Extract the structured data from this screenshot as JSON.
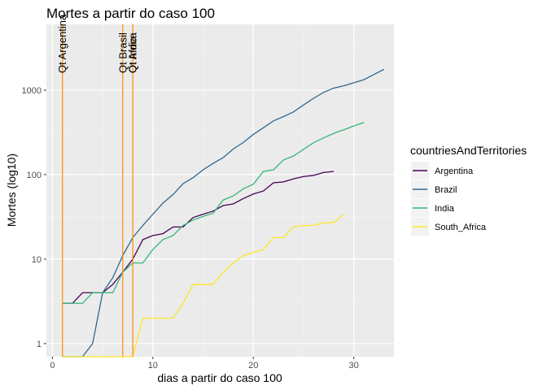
{
  "chart_data": {
    "type": "line",
    "title": "Mortes a partir do caso 100",
    "xlabel": "dias a partir do caso 100",
    "ylabel": "Mortes (log10)",
    "xlim": [
      -0.6,
      34.0
    ],
    "ylim": [
      0.7,
      6000
    ],
    "yscale": "log10",
    "x_ticks": [
      0,
      10,
      20,
      30
    ],
    "x_minor_ticks": [
      5,
      15,
      25
    ],
    "y_ticks": [
      1,
      10,
      100,
      1000
    ],
    "y_tick_labels": [
      "1",
      "10",
      "100",
      "1000"
    ],
    "grid": true,
    "legend": {
      "title": "countriesAndTerritories",
      "placement": "right",
      "entries": [
        "Argentina",
        "Brazil",
        "India",
        "South_Africa"
      ]
    },
    "series": [
      {
        "name": "Argentina",
        "color": "#440154",
        "points": [
          [
            1,
            3
          ],
          [
            2,
            3
          ],
          [
            3,
            4
          ],
          [
            4,
            4
          ],
          [
            5,
            4
          ],
          [
            6,
            5
          ],
          [
            7,
            7
          ],
          [
            8,
            10
          ],
          [
            9,
            17
          ],
          [
            10,
            19
          ],
          [
            11,
            20
          ],
          [
            12,
            24
          ],
          [
            13,
            24
          ],
          [
            14,
            31
          ],
          [
            15,
            34
          ],
          [
            16,
            37
          ],
          [
            17,
            43
          ],
          [
            18,
            45
          ],
          [
            19,
            52
          ],
          [
            20,
            59
          ],
          [
            21,
            64
          ],
          [
            22,
            80
          ],
          [
            23,
            82
          ],
          [
            24,
            89
          ],
          [
            25,
            95
          ],
          [
            26,
            98
          ],
          [
            27,
            106
          ],
          [
            28,
            109
          ]
        ]
      },
      {
        "name": "Brazil",
        "color": "#31688e",
        "points": [
          [
            1,
            0.5
          ],
          [
            2,
            0.5
          ],
          [
            3,
            0.6
          ],
          [
            4,
            1
          ],
          [
            5,
            4
          ],
          [
            6,
            6
          ],
          [
            7,
            11
          ],
          [
            8,
            18
          ],
          [
            9,
            25
          ],
          [
            10,
            34
          ],
          [
            11,
            46
          ],
          [
            12,
            58
          ],
          [
            13,
            78
          ],
          [
            14,
            92
          ],
          [
            15,
            114
          ],
          [
            16,
            136
          ],
          [
            17,
            159
          ],
          [
            18,
            201
          ],
          [
            19,
            240
          ],
          [
            20,
            299
          ],
          [
            21,
            359
          ],
          [
            22,
            432
          ],
          [
            23,
            486
          ],
          [
            24,
            553
          ],
          [
            25,
            667
          ],
          [
            26,
            800
          ],
          [
            27,
            941
          ],
          [
            28,
            1056
          ],
          [
            29,
            1124
          ],
          [
            30,
            1223
          ],
          [
            31,
            1328
          ],
          [
            32,
            1532
          ],
          [
            33,
            1760
          ]
        ]
      },
      {
        "name": "India",
        "color": "#35b779",
        "points": [
          [
            1,
            3
          ],
          [
            2,
            3
          ],
          [
            3,
            3
          ],
          [
            4,
            4
          ],
          [
            5,
            4
          ],
          [
            6,
            4
          ],
          [
            7,
            7
          ],
          [
            8,
            9
          ],
          [
            9,
            9
          ],
          [
            10,
            13
          ],
          [
            11,
            17
          ],
          [
            12,
            19
          ],
          [
            13,
            25
          ],
          [
            14,
            29
          ],
          [
            15,
            32
          ],
          [
            16,
            35
          ],
          [
            17,
            50
          ],
          [
            18,
            56
          ],
          [
            19,
            68
          ],
          [
            20,
            77
          ],
          [
            21,
            109
          ],
          [
            22,
            114
          ],
          [
            23,
            149
          ],
          [
            24,
            166
          ],
          [
            25,
            199
          ],
          [
            26,
            239
          ],
          [
            27,
            272
          ],
          [
            28,
            308
          ],
          [
            29,
            339
          ],
          [
            30,
            377
          ],
          [
            31,
            414
          ]
        ]
      },
      {
        "name": "South_Africa",
        "color": "#fde725",
        "points": [
          [
            1,
            0.5
          ],
          [
            8,
            0.5
          ],
          [
            9,
            2
          ],
          [
            10,
            2
          ],
          [
            11,
            2
          ],
          [
            12,
            2
          ],
          [
            13,
            3
          ],
          [
            14,
            5
          ],
          [
            15,
            5
          ],
          [
            16,
            5
          ],
          [
            17,
            7
          ],
          [
            18,
            9
          ],
          [
            19,
            11
          ],
          [
            20,
            12
          ],
          [
            21,
            13
          ],
          [
            22,
            18
          ],
          [
            23,
            18
          ],
          [
            24,
            24
          ],
          [
            25,
            25
          ],
          [
            26,
            25
          ],
          [
            27,
            27
          ],
          [
            28,
            27
          ],
          [
            29,
            34
          ]
        ]
      }
    ],
    "vlines": [
      {
        "x": 1,
        "color": "#ff8c00",
        "label": "Qt Argentina"
      },
      {
        "x": 7,
        "color": "#ff8c00",
        "label": "Qt Brasil"
      },
      {
        "x": 8,
        "color": "#ff8c00",
        "label": "Qt Africa"
      },
      {
        "x": 8,
        "color": "#ff8c00",
        "label": "Qt India"
      }
    ]
  }
}
